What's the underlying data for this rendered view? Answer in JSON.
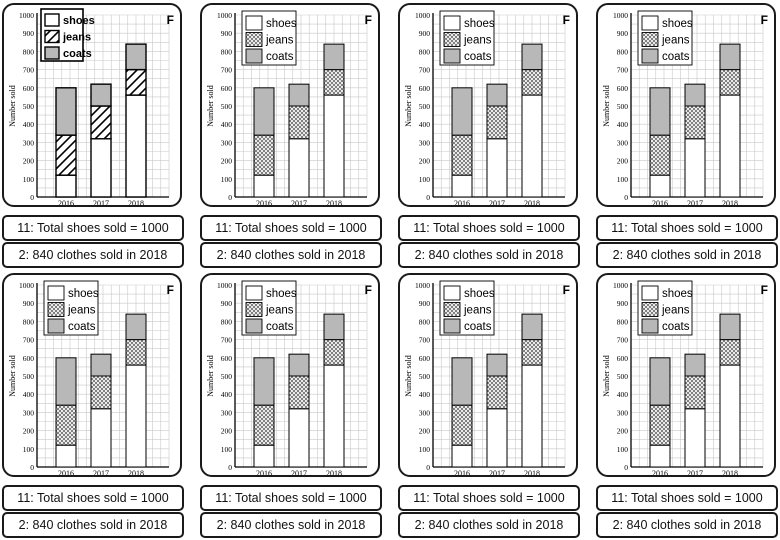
{
  "chart_data": {
    "type": "bar",
    "stacked": true,
    "categories": [
      "2016",
      "2017",
      "2018"
    ],
    "series": [
      {
        "name": "shoes",
        "values": [
          120,
          320,
          560
        ],
        "fill": "white"
      },
      {
        "name": "jeans",
        "values": [
          220,
          180,
          140
        ],
        "fill": "crosshatch"
      },
      {
        "name": "coats",
        "values": [
          260,
          120,
          140
        ],
        "fill": "grey"
      }
    ],
    "ylabel": "Number sold",
    "ylim": [
      0,
      1000
    ],
    "yticks": [
      "0",
      "100",
      "200",
      "300",
      "400",
      "500",
      "600",
      "700",
      "800",
      "900",
      "1000"
    ],
    "grid": true,
    "legend": "top-left",
    "corner_letter": "F"
  },
  "colors": {
    "border": "#1a1a1a",
    "coats": "#b8b8b8",
    "grid": "#c9c9c9",
    "jeans_hatch": "#555555"
  },
  "statements": {
    "first": "11: Total shoes sold = 1000",
    "second": "2: 840 clothes sold in 2018"
  },
  "panels": [
    {
      "variant": "A"
    },
    {
      "variant": "B"
    },
    {
      "variant": "B"
    },
    {
      "variant": "B"
    },
    {
      "variant": "B"
    },
    {
      "variant": "B"
    },
    {
      "variant": "B"
    },
    {
      "variant": "B"
    }
  ]
}
